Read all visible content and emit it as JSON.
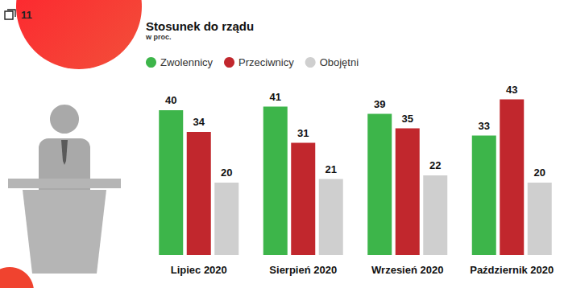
{
  "chart_data": {
    "type": "bar",
    "title": "Stosunek do rządu",
    "subtitle": "w proc.",
    "annotations": [
      "11"
    ],
    "categories": [
      "Lipiec 2020",
      "Sierpień 2020",
      "Wrzesień 2020",
      "Październik 2020"
    ],
    "series": [
      {
        "name": "Zwolennicy",
        "color": "#3db54a",
        "values": [
          40,
          41,
          39,
          33
        ]
      },
      {
        "name": "Przeciwnicy",
        "color": "#c1272d",
        "values": [
          34,
          31,
          35,
          43
        ]
      },
      {
        "name": "Obojętni",
        "color": "#cfcfcf",
        "values": [
          20,
          21,
          22,
          20
        ]
      }
    ],
    "ylim": [
      0,
      45
    ],
    "yticks": [
      0,
      45
    ],
    "grid": false,
    "legend": "top-left",
    "data_labels": true,
    "tick_labels": "x"
  }
}
